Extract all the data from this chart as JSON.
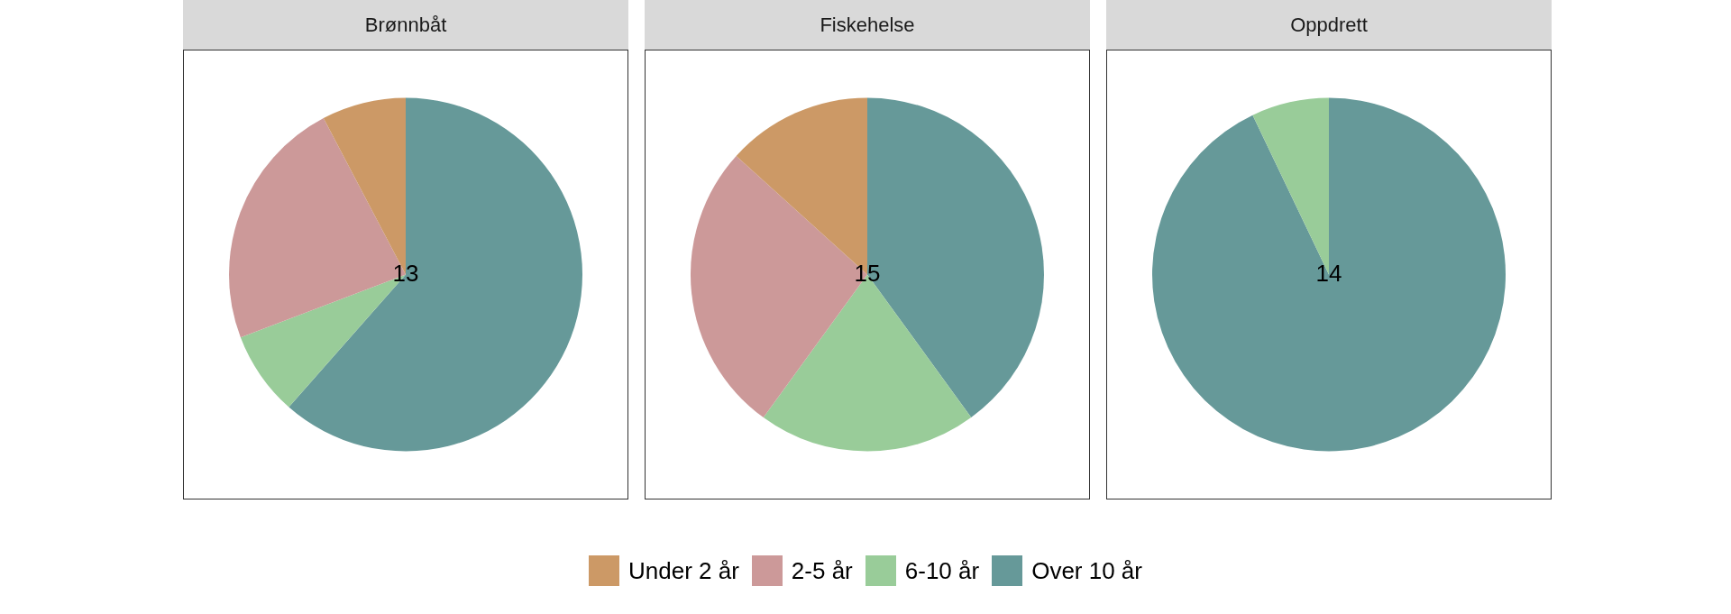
{
  "chart_data": {
    "type": "pie",
    "categories": [
      "Under 2 år",
      "2-5 år",
      "6-10 år",
      "Over 10 år"
    ],
    "colors": [
      "#cc9966",
      "#cc9999",
      "#99cc99",
      "#669999"
    ],
    "legend": "bottom",
    "series": [
      {
        "name": "Brønnbåt",
        "values": [
          7.7,
          23.1,
          7.7,
          61.5
        ]
      },
      {
        "name": "Fiskehelse",
        "values": [
          13.3,
          26.7,
          20,
          40
        ]
      },
      {
        "name": "Oppdrett",
        "values": [
          0,
          0,
          7.1,
          92.9
        ]
      }
    ],
    "annotations": [
      "13",
      "15",
      "14"
    ]
  }
}
